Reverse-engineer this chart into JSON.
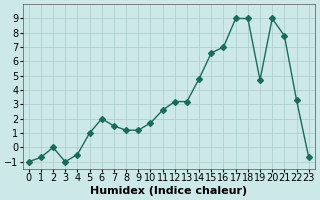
{
  "x": [
    0,
    1,
    2,
    3,
    4,
    5,
    6,
    7,
    8,
    9,
    10,
    11,
    12,
    13,
    14,
    15,
    16,
    17,
    18,
    19,
    20,
    21,
    22,
    23
  ],
  "y": [
    -1,
    -0.7,
    0,
    -1,
    -0.5,
    1,
    2,
    1.5,
    1.2,
    1.2,
    1.7,
    2.6,
    3.2,
    3.2,
    4.8,
    6.6,
    7,
    9,
    9,
    4.7,
    9,
    7.8,
    3.3,
    -0.7
  ],
  "line_color": "#1a6b5a",
  "marker": "D",
  "marker_size": 3,
  "bg_color": "#cce8e8",
  "grid_color": "#aacccc",
  "xlabel": "Humidex (Indice chaleur)",
  "xlim": [
    -0.5,
    23.5
  ],
  "ylim": [
    -1.5,
    10
  ],
  "yticks": [
    -1,
    0,
    1,
    2,
    3,
    4,
    5,
    6,
    7,
    8,
    9
  ],
  "xticks": [
    0,
    1,
    2,
    3,
    4,
    5,
    6,
    7,
    8,
    9,
    10,
    11,
    12,
    13,
    14,
    15,
    16,
    17,
    18,
    19,
    20,
    21,
    22,
    23
  ],
  "tick_label_fontsize": 7,
  "xlabel_fontsize": 8
}
